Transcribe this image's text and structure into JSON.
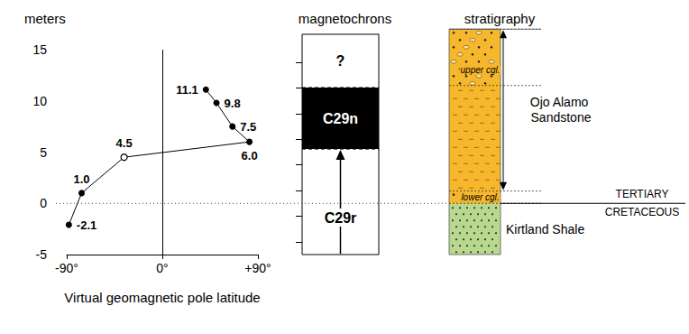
{
  "chart_data": {
    "type": "line",
    "ylabel": "meters",
    "xlabel": "Virtual geomagnetic pole latitude",
    "x": [
      -88,
      -76,
      -36,
      82,
      66,
      51,
      41
    ],
    "values": [
      -2.1,
      1.0,
      4.5,
      6.0,
      7.5,
      9.8,
      11.1
    ],
    "value_labels": [
      "-2.1",
      "1.0",
      "4.5",
      "6.0",
      "7.5",
      "9.8",
      "11.1"
    ],
    "xlim": [
      -90,
      90
    ],
    "xticks": [
      {
        "value": -90,
        "label": "-90°"
      },
      {
        "value": 0,
        "label": "0°"
      },
      {
        "value": 90,
        "label": "+90°"
      }
    ],
    "ylim": [
      -5,
      15
    ],
    "yticks": [
      -5,
      0,
      5,
      10,
      15
    ],
    "color": "#000000",
    "marker": "circle",
    "data_labels": true,
    "grid": false
  },
  "magnetochrons": {
    "title": "magnetochrons",
    "ylim": [
      -5,
      16.5
    ],
    "yticks": [
      -3.75,
      -1.25,
      1.25,
      3.75,
      6.25,
      8.75,
      11.25,
      13.75
    ],
    "tick_labels": false,
    "zones": [
      {
        "label": "C29r",
        "from": -5,
        "to": 5.3,
        "color": "#ffffff"
      },
      {
        "label": "C29n",
        "from": 5.3,
        "to": 11.3,
        "color": "#000000"
      },
      {
        "label": "?",
        "from": 11.3,
        "to": 16.5,
        "color": "#ffffff"
      }
    ]
  },
  "stratigraphy": {
    "title": "stratigraphy",
    "ylim": [
      -5,
      17
    ],
    "units": [
      {
        "label": "Kirtland Shale",
        "from": -5,
        "to": 0,
        "color": "#b9d88f"
      },
      {
        "label": "Ojo Alamo Sandstone",
        "from": 0,
        "to": 17,
        "color": "#f6b72c"
      }
    ],
    "members": [
      {
        "label": "lower cgl.",
        "from": 0,
        "to": 1.2
      },
      {
        "label": "upper cgl.",
        "from": 11.5,
        "to": 17
      }
    ],
    "boundary": {
      "value": 0,
      "above": "TERTIARY",
      "below": "CRETACEOUS"
    }
  }
}
